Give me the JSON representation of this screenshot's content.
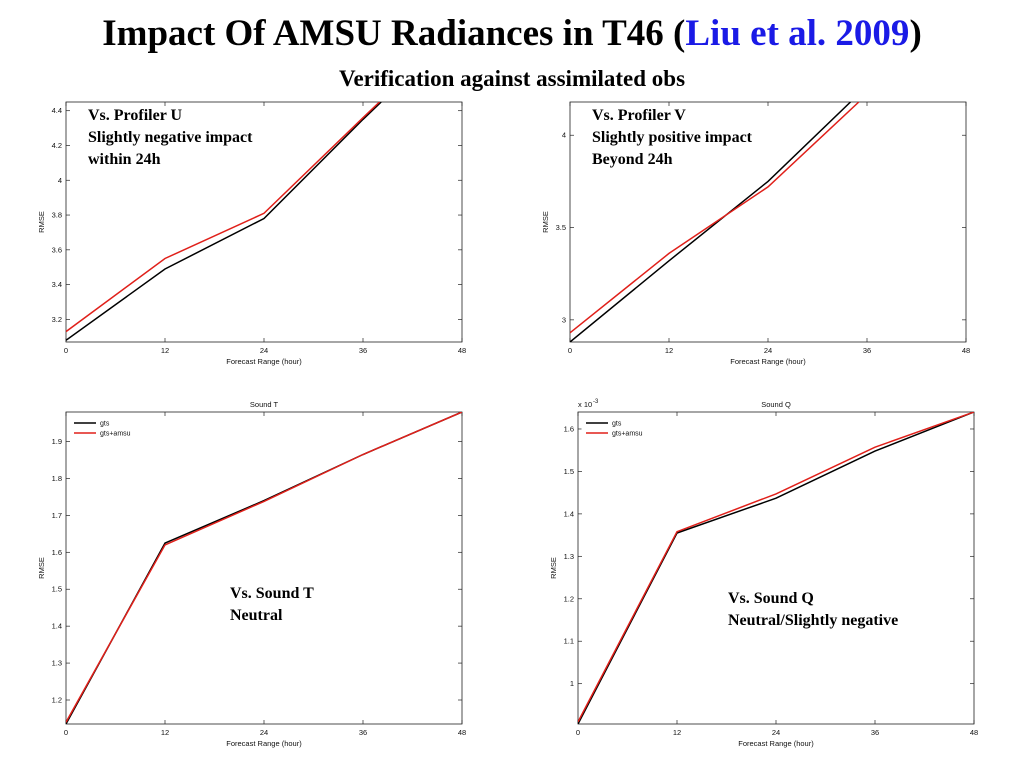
{
  "slide": {
    "title_main": "Impact Of AMSU Radiances in T46 (",
    "title_link": "Liu et al. 2009",
    "title_close": ")",
    "subtitle": "Verification against assimilated obs"
  },
  "colors": {
    "gts": "#000000",
    "gts_amsu": "#e0201a",
    "link": "#1a1ae6"
  },
  "chart_data": [
    {
      "type": "line",
      "title": "",
      "xlabel": "Forecast Range (hour)",
      "ylabel": "RMSE",
      "exponent": "",
      "x_ticks": [
        "0",
        "12",
        "24",
        "36",
        "48"
      ],
      "y_ticks": [
        "3.2",
        "3.4",
        "3.6",
        "3.8",
        "4",
        "4.2",
        "4.4"
      ],
      "xlim": [
        0,
        48
      ],
      "ylim": [
        3.07,
        4.45
      ],
      "legend": false,
      "annotation": [
        "Vs. Profiler U",
        "Slightly negative impact",
        "within 24h"
      ],
      "series": [
        {
          "color": "#000000",
          "x": [
            0,
            12,
            24,
            36,
            38.2
          ],
          "y": [
            3.08,
            3.49,
            3.78,
            4.35,
            4.45
          ]
        },
        {
          "color": "#e0201a",
          "x": [
            0,
            12,
            24,
            36,
            38.0
          ],
          "y": [
            3.13,
            3.55,
            3.81,
            4.36,
            4.45
          ]
        }
      ]
    },
    {
      "type": "line",
      "title": "",
      "xlabel": "Forecast Range (hour)",
      "ylabel": "RMSE",
      "exponent": "",
      "x_ticks": [
        "0",
        "12",
        "24",
        "36",
        "48"
      ],
      "y_ticks": [
        "3",
        "3.5",
        "4"
      ],
      "xlim": [
        0,
        48
      ],
      "ylim": [
        2.88,
        4.18
      ],
      "legend": false,
      "annotation": [
        "Vs. Profiler V",
        "Slightly positive impact",
        "Beyond 24h"
      ],
      "series": [
        {
          "color": "#000000",
          "x": [
            0,
            12,
            24,
            34.0
          ],
          "y": [
            2.88,
            3.32,
            3.75,
            4.18
          ]
        },
        {
          "color": "#e0201a",
          "x": [
            0,
            12,
            24,
            35.0
          ],
          "y": [
            2.93,
            3.36,
            3.72,
            4.18
          ]
        }
      ]
    },
    {
      "type": "line",
      "title": "Sound T",
      "xlabel": "Forecast Range (hour)",
      "ylabel": "RMSE",
      "exponent": "",
      "x_ticks": [
        "0",
        "12",
        "24",
        "36",
        "48"
      ],
      "y_ticks": [
        "1.2",
        "1.3",
        "1.4",
        "1.5",
        "1.6",
        "1.7",
        "1.8",
        "1.9"
      ],
      "xlim": [
        0,
        48
      ],
      "ylim": [
        1.135,
        1.98
      ],
      "legend": true,
      "legend_entries": [
        "gts",
        "gts+amsu"
      ],
      "annotation": [
        "Vs. Sound T",
        "Neutral"
      ],
      "series": [
        {
          "name": "gts",
          "color": "#000000",
          "x": [
            0,
            12,
            24,
            36,
            48
          ],
          "y": [
            1.135,
            1.625,
            1.74,
            1.865,
            1.98
          ]
        },
        {
          "name": "gts+amsu",
          "color": "#e0201a",
          "x": [
            0,
            12,
            24,
            36,
            48
          ],
          "y": [
            1.14,
            1.62,
            1.738,
            1.865,
            1.98
          ]
        }
      ]
    },
    {
      "type": "line",
      "title": "Sound Q",
      "xlabel": "Forecast Range (hour)",
      "ylabel": "RMSE",
      "exponent": "x 10",
      "exponent_power": "-3",
      "x_ticks": [
        "0",
        "12",
        "24",
        "36",
        "48"
      ],
      "y_ticks": [
        "1",
        "1.1",
        "1.2",
        "1.3",
        "1.4",
        "1.5",
        "1.6"
      ],
      "xlim": [
        0,
        48
      ],
      "ylim": [
        0.905,
        1.64
      ],
      "legend": true,
      "legend_entries": [
        "gts",
        "gts+amsu"
      ],
      "annotation": [
        "Vs. Sound Q",
        "Neutral/Slightly negative"
      ],
      "series": [
        {
          "name": "gts",
          "color": "#000000",
          "x": [
            0,
            12,
            24,
            36,
            48
          ],
          "y": [
            0.905,
            1.355,
            1.437,
            1.548,
            1.64
          ]
        },
        {
          "name": "gts+amsu",
          "color": "#e0201a",
          "x": [
            0,
            12,
            24,
            36,
            48
          ],
          "y": [
            0.91,
            1.358,
            1.447,
            1.557,
            1.64
          ]
        }
      ]
    }
  ]
}
